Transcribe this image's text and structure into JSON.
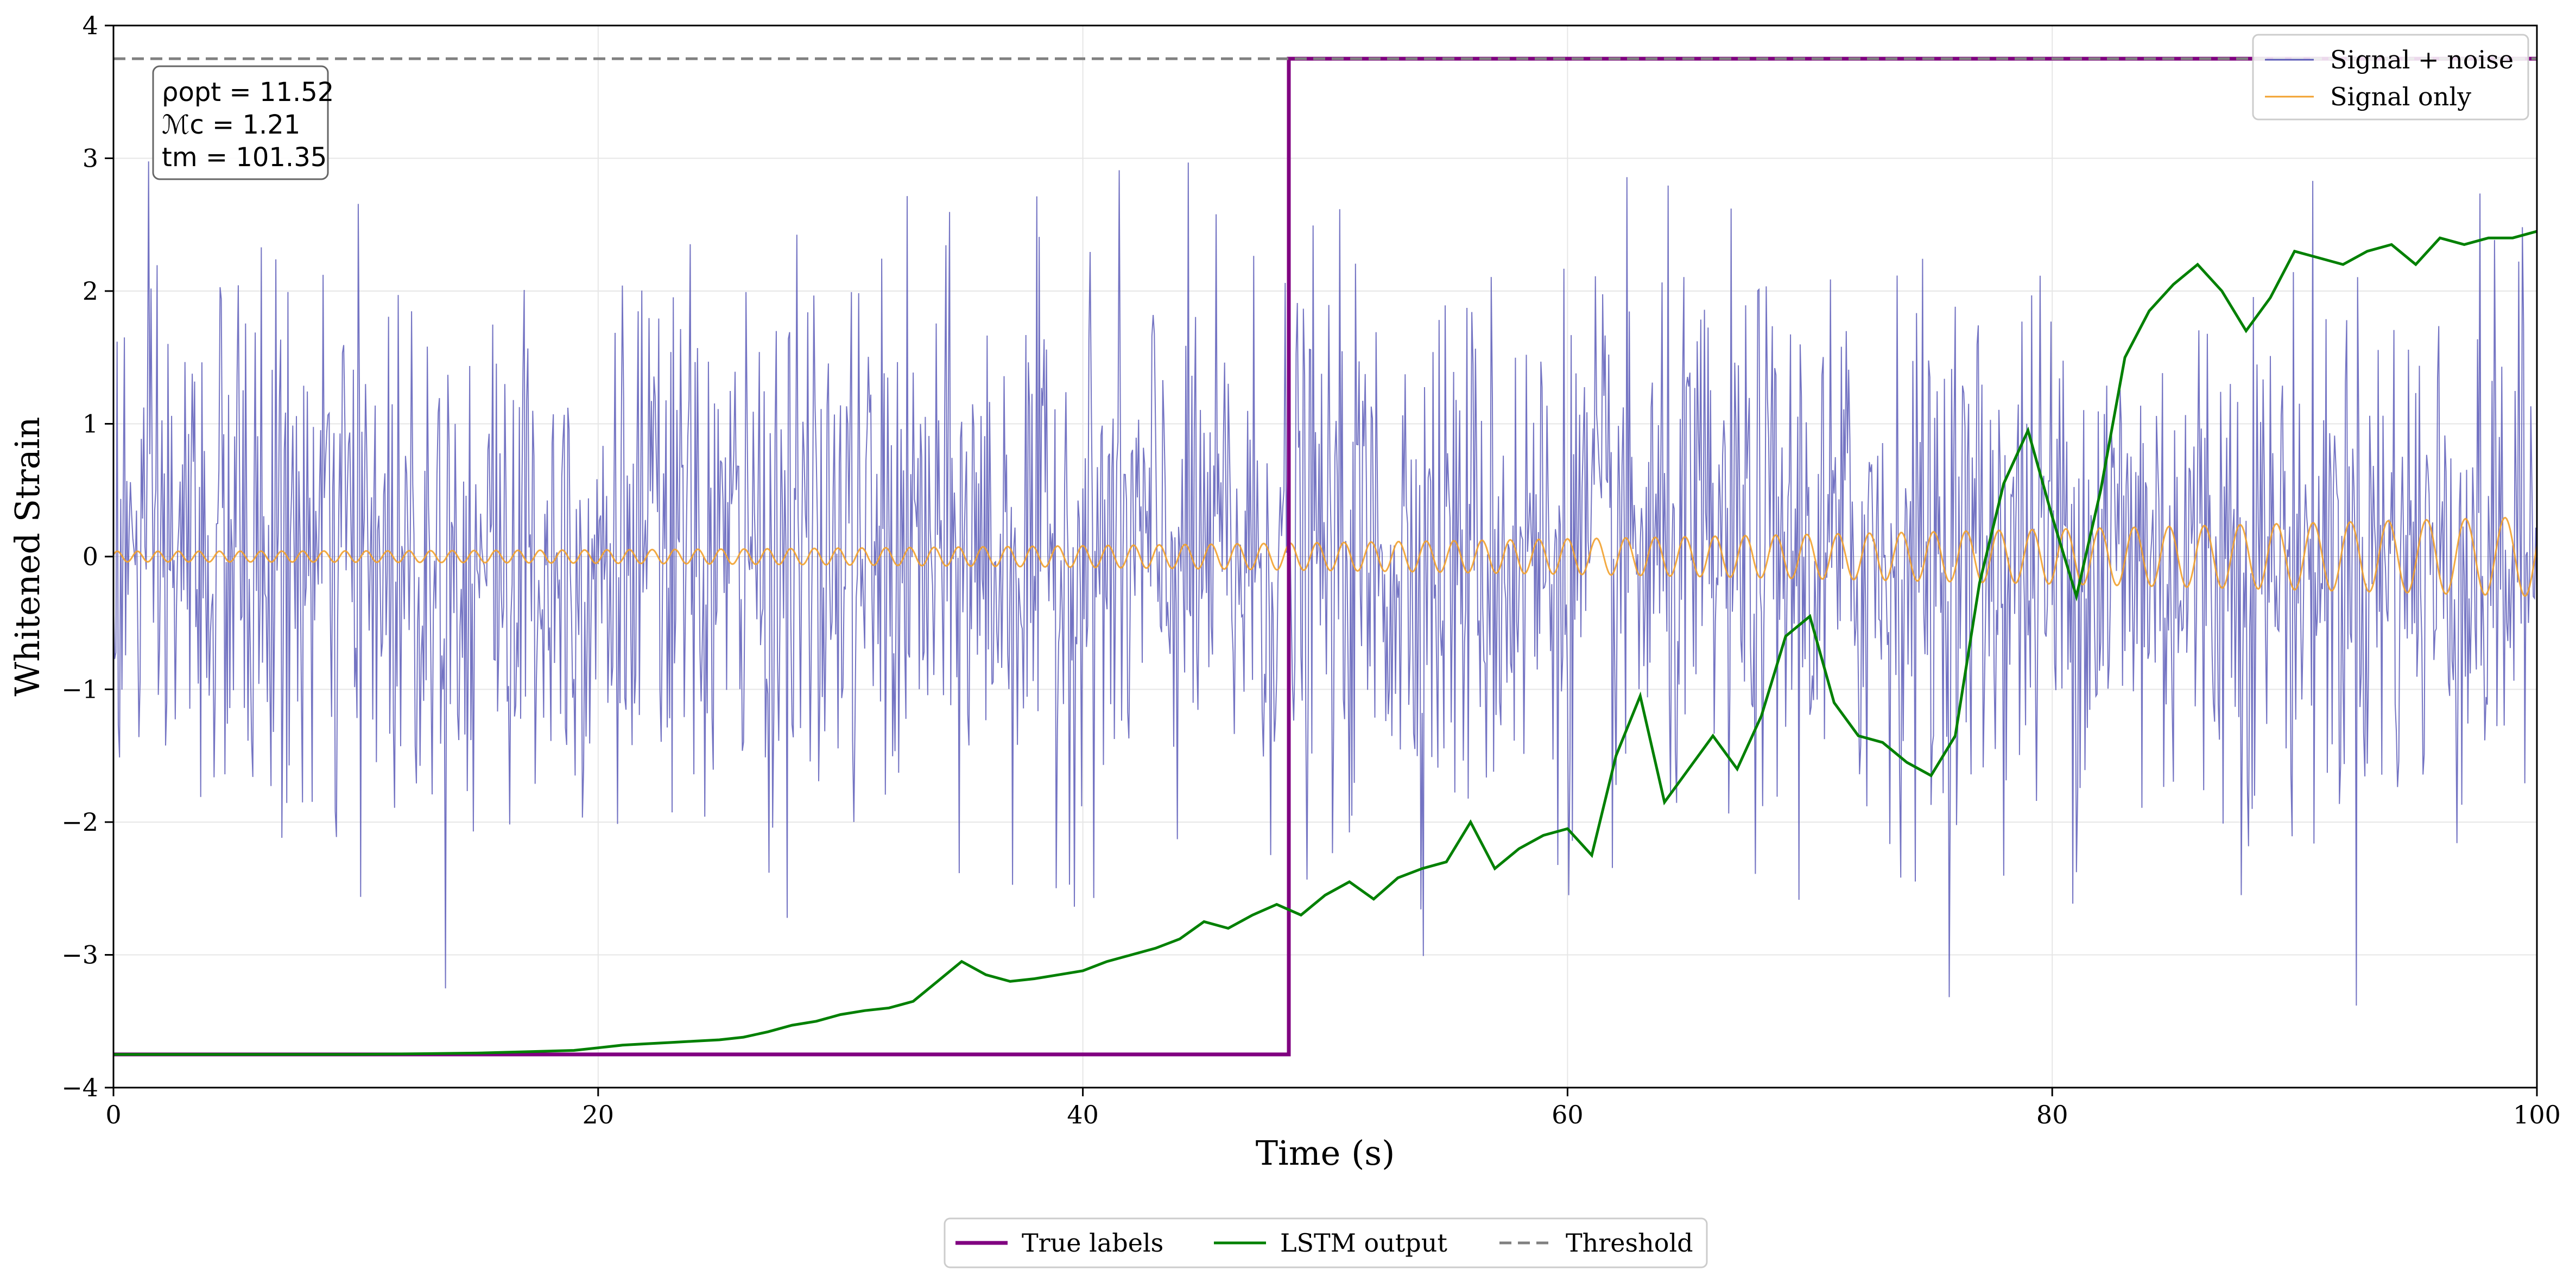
{
  "chart_data": {
    "type": "line",
    "title": "",
    "xlabel": "Time (s)",
    "ylabel": "Whitened Strain",
    "xlim": [
      0,
      100
    ],
    "ylim": [
      -4,
      4
    ],
    "xticks": [
      "0",
      "20",
      "40",
      "60",
      "80",
      "100"
    ],
    "yticks": [
      "−4",
      "−3",
      "−2",
      "−1",
      "0",
      "1",
      "2",
      "3",
      "4"
    ],
    "grid": true,
    "annotation": {
      "lines": [
        "ρopt = 11.52",
        "ℳc = 1.21",
        "tm = 101.35"
      ],
      "position": "top-left"
    },
    "legend_upper": {
      "placement": "top-right",
      "entries": [
        "Signal + noise",
        "Signal only"
      ]
    },
    "legend_lower": {
      "placement": "bottom-center",
      "entries": [
        "True labels",
        "LSTM output",
        "Threshold"
      ]
    },
    "series": [
      {
        "name": "Signal + noise",
        "color": "#5c5cb8",
        "kind": "noise",
        "sample_interval_s": 0.05,
        "std": 1.0,
        "x_range": [
          0,
          100
        ]
      },
      {
        "name": "Signal only",
        "color": "#f2a12e",
        "kind": "chirp",
        "sample_interval_s": 0.05,
        "amplitude_start": 0.04,
        "amplitude_end": 0.3,
        "frequency_start_hz": 1.2,
        "frequency_end_hz": 0.6,
        "x_range": [
          0,
          100
        ]
      },
      {
        "name": "True labels",
        "color": "#800080",
        "kind": "step",
        "x": [
          0,
          48.5,
          48.5,
          100
        ],
        "y": [
          -3.75,
          -3.75,
          3.75,
          3.75
        ]
      },
      {
        "name": "LSTM output",
        "color": "#008000",
        "kind": "line",
        "x": [
          0,
          5,
          10,
          15,
          17,
          19,
          20,
          21,
          22,
          23,
          24,
          25,
          26,
          27,
          28,
          29,
          30,
          31,
          32,
          33,
          34,
          35,
          36,
          37,
          38,
          39,
          40,
          41,
          42,
          43,
          44,
          45,
          46,
          47,
          48,
          49,
          50,
          51,
          52,
          53,
          54,
          55,
          56,
          57,
          58,
          59,
          60,
          61,
          62,
          63,
          64,
          65,
          66,
          67,
          68,
          69,
          70,
          71,
          72,
          73,
          74,
          75,
          76,
          77,
          78,
          79,
          80,
          81,
          82,
          83,
          84,
          85,
          86,
          87,
          88,
          89,
          90,
          91,
          92,
          93,
          94,
          95,
          96,
          97,
          98,
          99,
          100
        ],
        "y": [
          -3.75,
          -3.75,
          -3.75,
          -3.74,
          -3.73,
          -3.72,
          -3.7,
          -3.68,
          -3.67,
          -3.66,
          -3.65,
          -3.64,
          -3.62,
          -3.58,
          -3.53,
          -3.5,
          -3.45,
          -3.42,
          -3.4,
          -3.35,
          -3.2,
          -3.05,
          -3.15,
          -3.2,
          -3.18,
          -3.15,
          -3.12,
          -3.05,
          -3.0,
          -2.95,
          -2.88,
          -2.75,
          -2.8,
          -2.7,
          -2.62,
          -2.7,
          -2.55,
          -2.45,
          -2.58,
          -2.42,
          -2.35,
          -2.3,
          -2.0,
          -2.35,
          -2.2,
          -2.1,
          -2.05,
          -2.25,
          -1.5,
          -1.05,
          -1.85,
          -1.6,
          -1.35,
          -1.6,
          -1.2,
          -0.6,
          -0.45,
          -1.1,
          -1.35,
          -1.4,
          -1.55,
          -1.65,
          -1.35,
          -0.2,
          0.55,
          0.95,
          0.3,
          -0.3,
          0.5,
          1.5,
          1.85,
          2.05,
          2.2,
          2.0,
          1.7,
          1.95,
          2.3,
          2.25,
          2.2,
          2.3,
          2.35,
          2.2,
          2.4,
          2.35,
          2.4,
          2.4,
          2.45
        ]
      },
      {
        "name": "Threshold",
        "color": "#808080",
        "kind": "hline",
        "y": 3.75
      }
    ]
  }
}
